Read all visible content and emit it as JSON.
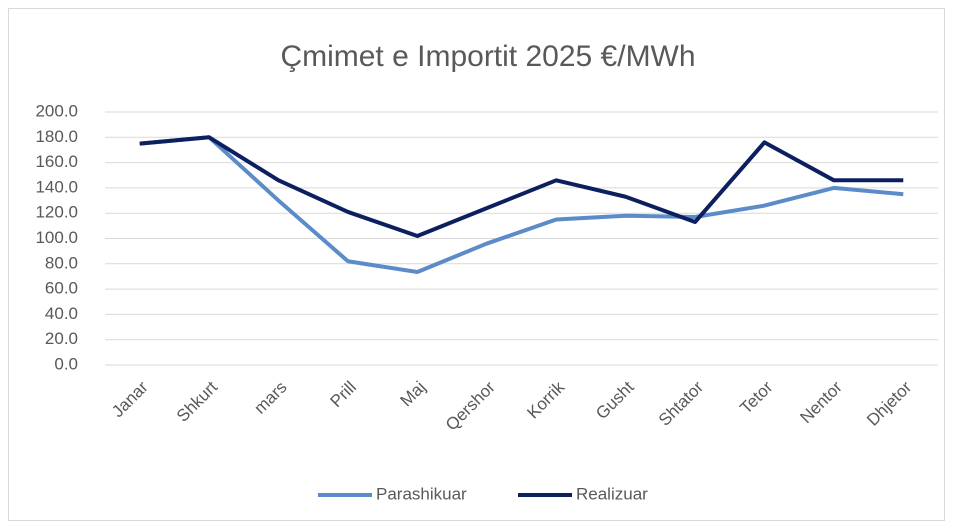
{
  "chart_data": {
    "type": "line",
    "title": "Çmimet e Importit 2025 €/MWh",
    "categories": [
      "Janar",
      "Shkurt",
      "mars",
      "Prill",
      "Maj",
      "Qershor",
      "Korrik",
      "Gusht",
      "Shtator",
      "Tetor",
      "Nentor",
      "Dhjetor"
    ],
    "series": [
      {
        "name": "Parashikuar",
        "color": "#5b8cc9",
        "values": [
          175,
          180,
          130,
          82,
          73.5,
          96,
          115,
          118,
          117,
          126,
          140,
          135
        ]
      },
      {
        "name": "Realizuar",
        "color": "#0c2060",
        "values": [
          175,
          180,
          146,
          121,
          102,
          124,
          146,
          133,
          113,
          176,
          146,
          146
        ]
      }
    ],
    "ylim": [
      0,
      200
    ],
    "yticks": [
      {
        "value": 0,
        "label": "0.0"
      },
      {
        "value": 20,
        "label": "20.0"
      },
      {
        "value": 40,
        "label": "40.0"
      },
      {
        "value": 60,
        "label": "60.0"
      },
      {
        "value": 80,
        "label": "80.0"
      },
      {
        "value": 100,
        "label": "100.0"
      },
      {
        "value": 120,
        "label": "120.0"
      },
      {
        "value": 140,
        "label": "140.0"
      },
      {
        "value": 160,
        "label": "160.0"
      },
      {
        "value": 180,
        "label": "180.0"
      },
      {
        "value": 200,
        "label": "200.0"
      }
    ],
    "grid": true,
    "legend": "bottom"
  }
}
